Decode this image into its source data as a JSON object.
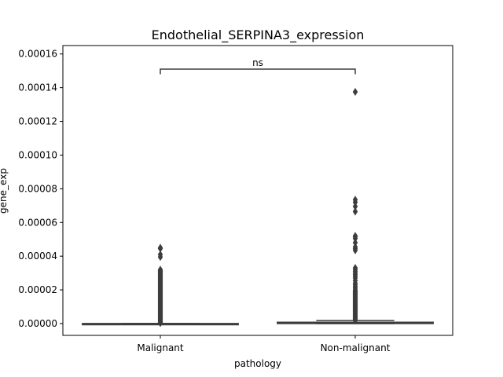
{
  "chart_data": {
    "type": "boxplot",
    "title": "Endothelial_SERPINA3_expression",
    "xlabel": "pathology",
    "ylabel": "gene_exp",
    "categories": [
      "Malignant",
      "Non-malignant"
    ],
    "ylim": [
      -7e-06,
      0.000165
    ],
    "yticks": [
      0,
      2e-05,
      4e-05,
      6e-05,
      8e-05,
      0.0001,
      0.00012,
      0.00014,
      0.00016
    ],
    "ytick_labels": [
      "0.00000",
      "0.00002",
      "0.00004",
      "0.00006",
      "0.00008",
      "0.00010",
      "0.00012",
      "0.00014",
      "0.00016"
    ],
    "grid": false,
    "legend": "none",
    "box_color": "#3d3d3d",
    "series": [
      {
        "category": "Malignant",
        "q1": 0.0,
        "median": 0.0,
        "q3": 0.0,
        "whisker_low": 0.0,
        "whisker_high": 0.0,
        "outliers": [
          3e-07,
          6e-07,
          1e-06,
          1.5e-06,
          2e-06,
          2.5e-06,
          3e-06,
          3.5e-06,
          4e-06,
          4.5e-06,
          5e-06,
          5.5e-06,
          6e-06,
          6.5e-06,
          7e-06,
          7.5e-06,
          8e-06,
          8.5e-06,
          9e-06,
          9.5e-06,
          1e-05,
          1.05e-05,
          1.1e-05,
          1.15e-05,
          1.2e-05,
          1.25e-05,
          1.3e-05,
          1.35e-05,
          1.4e-05,
          1.45e-05,
          1.5e-05,
          1.55e-05,
          1.6e-05,
          1.65e-05,
          1.7e-05,
          1.75e-05,
          1.8e-05,
          1.85e-05,
          1.9e-05,
          1.95e-05,
          2e-05,
          2.05e-05,
          2.1e-05,
          2.15e-05,
          2.2e-05,
          2.25e-05,
          2.3e-05,
          2.35e-05,
          2.4e-05,
          2.45e-05,
          2.5e-05,
          2.55e-05,
          2.6e-05,
          2.65e-05,
          2.7e-05,
          2.75e-05,
          2.8e-05,
          2.85e-05,
          2.9e-05,
          2.95e-05,
          3e-05,
          3.05e-05,
          3.1e-05,
          3.15e-05,
          3.2e-05,
          3.95e-05,
          4.1e-05,
          4.45e-05,
          4.5e-05
        ]
      },
      {
        "category": "Non-malignant",
        "q1": 0.0,
        "median": 2e-07,
        "q3": 8e-07,
        "whisker_low": 0.0,
        "whisker_high": 1.8e-06,
        "outliers": [
          2e-06,
          2.5e-06,
          3e-06,
          3.5e-06,
          4e-06,
          4.5e-06,
          5e-06,
          5.5e-06,
          6e-06,
          6.5e-06,
          7e-06,
          7.5e-06,
          8e-06,
          8.5e-06,
          9e-06,
          9.5e-06,
          1e-05,
          1.05e-05,
          1.1e-05,
          1.15e-05,
          1.2e-05,
          1.25e-05,
          1.3e-05,
          1.35e-05,
          1.4e-05,
          1.45e-05,
          1.5e-05,
          1.55e-05,
          1.6e-05,
          1.65e-05,
          1.7e-05,
          1.75e-05,
          1.8e-05,
          1.85e-05,
          1.9e-05,
          1.95e-05,
          2e-05,
          2.1e-05,
          2.2e-05,
          2.3e-05,
          2.4e-05,
          2.55e-05,
          2.7e-05,
          2.8e-05,
          2.9e-05,
          3e-05,
          3.1e-05,
          3.2e-05,
          3.3e-05,
          4.35e-05,
          4.45e-05,
          4.55e-05,
          4.8e-05,
          5.05e-05,
          5.15e-05,
          5.2e-05,
          6.65e-05,
          6.95e-05,
          7.2e-05,
          7.35e-05,
          0.0001375
        ]
      }
    ],
    "annotations": [
      {
        "text": "ns",
        "between": [
          "Malignant",
          "Non-malignant"
        ],
        "y": 0.000151,
        "drop": 3e-06
      }
    ]
  }
}
